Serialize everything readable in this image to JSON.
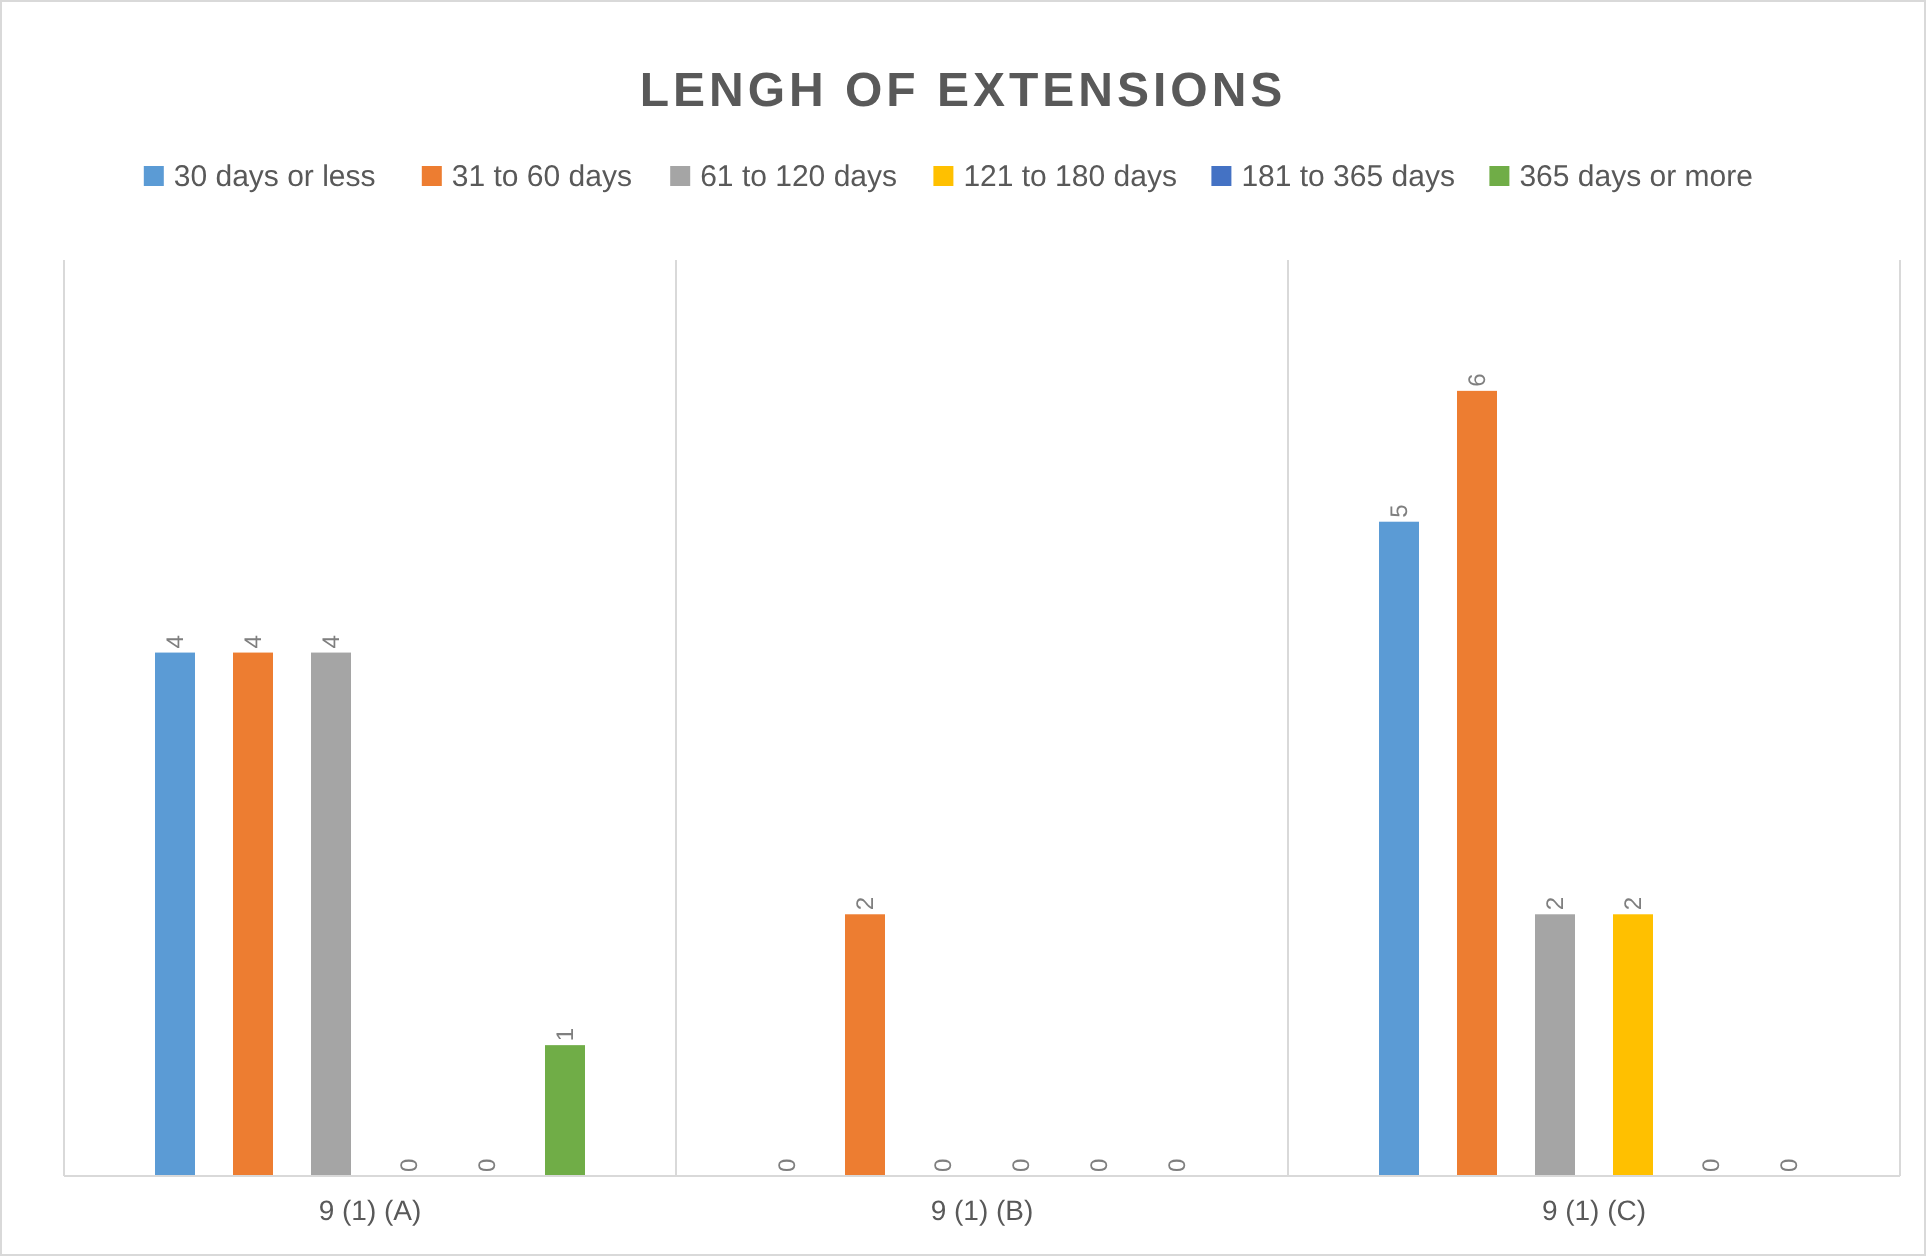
{
  "chart_data": {
    "type": "bar",
    "title": "LENGH OF EXTENSIONS",
    "categories": [
      "9 (1) (A)",
      "9 (1) (B)",
      "9 (1) (C)"
    ],
    "series": [
      {
        "name": "30 days or less",
        "color": "#5b9bd5",
        "values": [
          4,
          0,
          5
        ]
      },
      {
        "name": "31 to 60 days",
        "color": "#ed7d31",
        "values": [
          4,
          2,
          6
        ]
      },
      {
        "name": "61 to 120 days",
        "color": "#a5a5a5",
        "values": [
          4,
          0,
          2
        ]
      },
      {
        "name": "121 to 180 days",
        "color": "#ffc000",
        "values": [
          0,
          0,
          2
        ]
      },
      {
        "name": "181 to 365 days",
        "color": "#4472c4",
        "values": [
          0,
          0,
          0
        ]
      },
      {
        "name": "365 days or more",
        "color": "#70ad47",
        "values": [
          1,
          0,
          0
        ]
      }
    ],
    "data_labels": true,
    "legend": "top",
    "grid": "x"
  }
}
